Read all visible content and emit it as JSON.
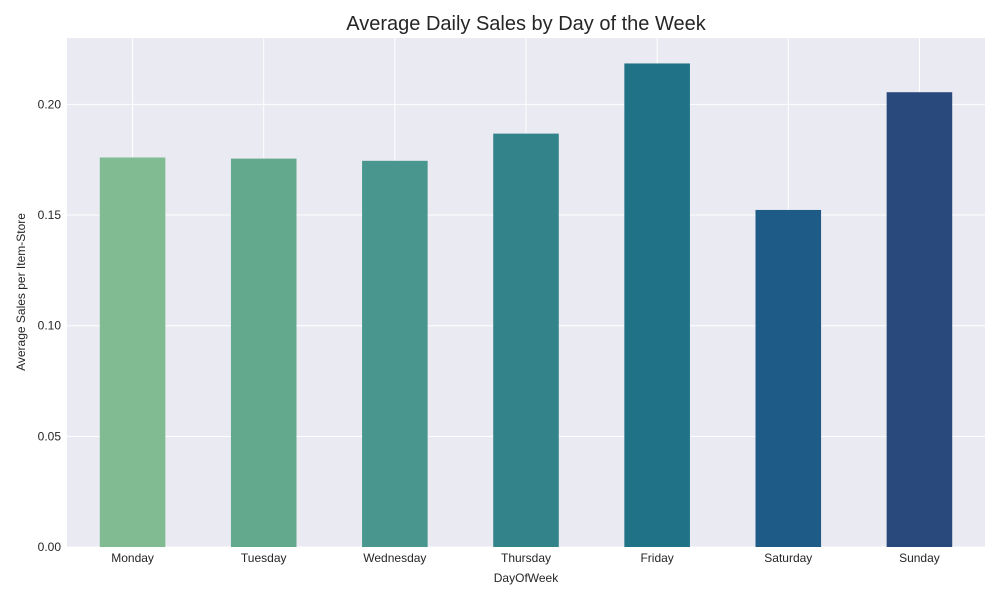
{
  "chart_data": {
    "type": "bar",
    "title": "Average Daily Sales by Day of the Week",
    "xlabel": "DayOfWeek",
    "ylabel": "Average Sales per Item-Store",
    "categories": [
      "Monday",
      "Tuesday",
      "Wednesday",
      "Thursday",
      "Friday",
      "Saturday",
      "Sunday"
    ],
    "values": [
      0.176,
      0.1755,
      0.1745,
      0.1868,
      0.2185,
      0.1523,
      0.2055
    ],
    "ylim": [
      0,
      0.23
    ],
    "yticks": [
      0.0,
      0.05,
      0.1,
      0.15,
      0.2
    ],
    "ytick_labels": [
      "0.00",
      "0.05",
      "0.10",
      "0.15",
      "0.20"
    ],
    "grid": true,
    "colors": [
      "#80bb91",
      "#62a98e",
      "#48968e",
      "#33848a",
      "#207286",
      "#1f5b87",
      "#29487b"
    ],
    "plot_background": "#eaeaf2",
    "grid_color": "#ffffff"
  }
}
